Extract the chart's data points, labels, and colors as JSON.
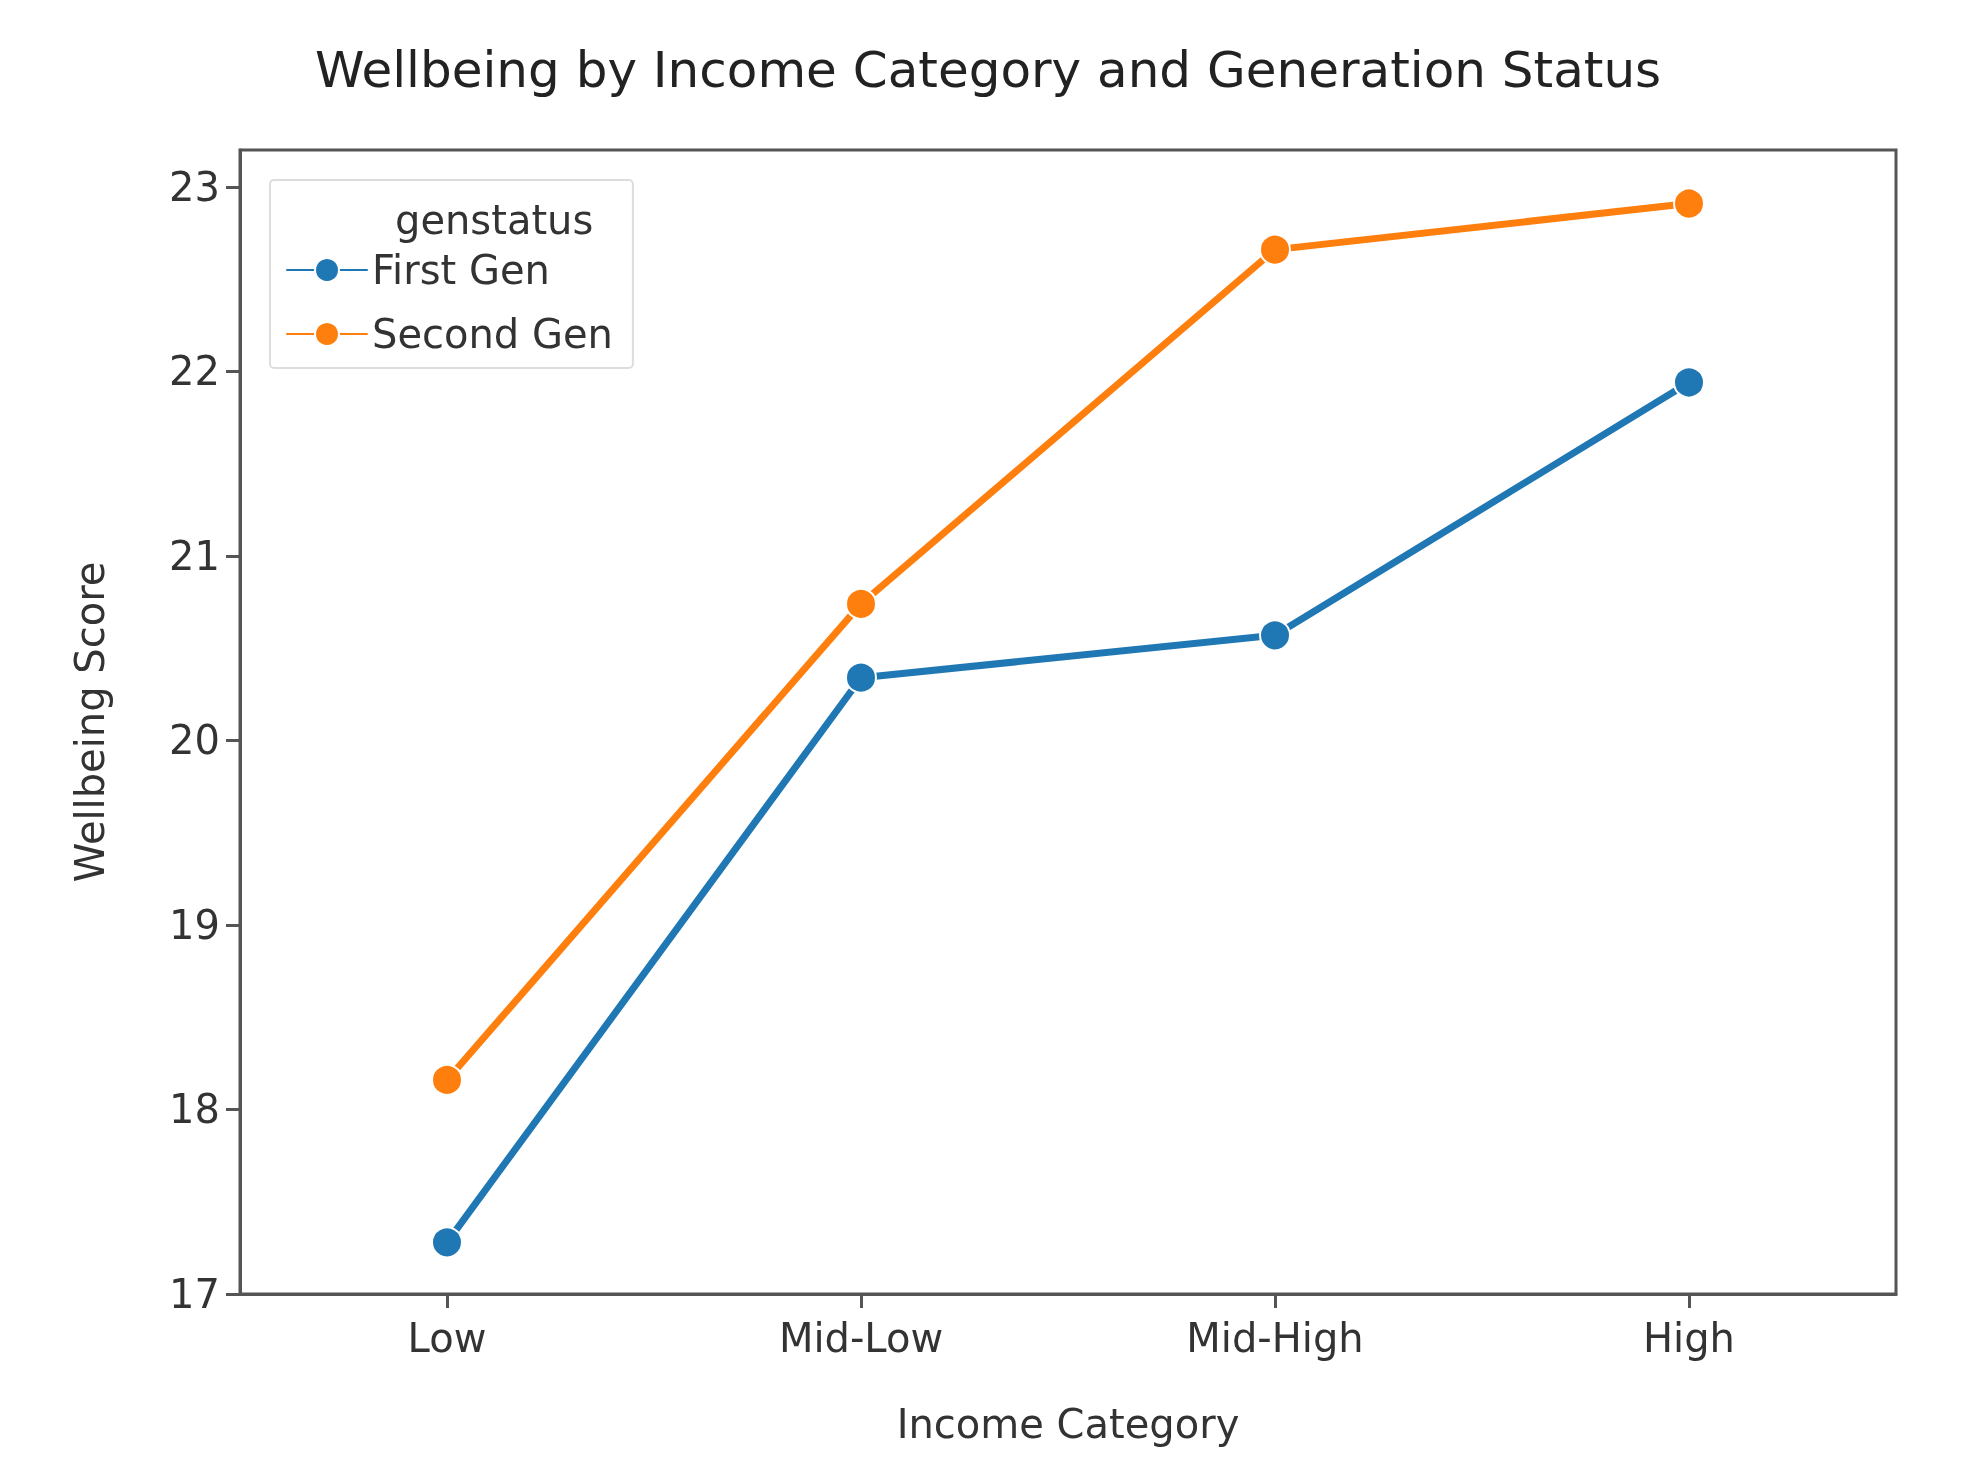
{
  "chart_data": {
    "type": "line",
    "title": "Wellbeing by Income Category and Generation Status",
    "xlabel": "Income Category",
    "ylabel": "Wellbeing Score",
    "legend_title": "genstatus",
    "categories": [
      "Low",
      "Mid-Low",
      "Mid-High",
      "High"
    ],
    "series": [
      {
        "name": "First Gen",
        "color": "#1f77b4",
        "values": [
          17.28,
          20.34,
          20.57,
          21.94
        ]
      },
      {
        "name": "Second Gen",
        "color": "#ff7f0e",
        "values": [
          18.16,
          20.74,
          22.66,
          22.91
        ]
      }
    ],
    "ylim": [
      17,
      23.2
    ],
    "yticks": [
      17,
      18,
      19,
      20,
      21,
      22,
      23
    ],
    "grid": false,
    "legend": "top left",
    "marker": "circle",
    "line_style": "solid"
  }
}
